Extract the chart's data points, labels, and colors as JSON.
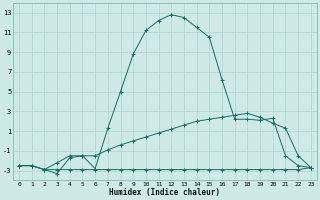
{
  "xlabel": "Humidex (Indice chaleur)",
  "background_color": "#ceeae7",
  "grid_color": "#aed4d0",
  "line_color": "#1a6b60",
  "xlim": [
    -0.5,
    23.5
  ],
  "ylim": [
    -4,
    14
  ],
  "yticks": [
    -3,
    -1,
    1,
    3,
    5,
    7,
    9,
    11,
    13
  ],
  "xticks": [
    0,
    1,
    2,
    3,
    4,
    5,
    6,
    7,
    8,
    9,
    10,
    11,
    12,
    13,
    14,
    15,
    16,
    17,
    18,
    19,
    20,
    21,
    22,
    23
  ],
  "series_flat_x": [
    0,
    1,
    2,
    3,
    4,
    5,
    6,
    7,
    8,
    9,
    10,
    11,
    12,
    13,
    14,
    15,
    16,
    17,
    18,
    19,
    20,
    21,
    22,
    23
  ],
  "series_flat_y": [
    -2.5,
    -2.5,
    -2.9,
    -2.9,
    -2.9,
    -2.9,
    -2.9,
    -2.9,
    -2.9,
    -2.9,
    -2.9,
    -2.9,
    -2.9,
    -2.9,
    -2.9,
    -2.9,
    -2.9,
    -2.9,
    -2.9,
    -2.9,
    -2.9,
    -2.9,
    -2.9,
    -2.7
  ],
  "series_slope_x": [
    0,
    1,
    2,
    3,
    4,
    5,
    6,
    7,
    8,
    9,
    10,
    11,
    12,
    13,
    14,
    15,
    16,
    17,
    18,
    19,
    20,
    21,
    22,
    23
  ],
  "series_slope_y": [
    -2.5,
    -2.5,
    -2.9,
    -2.2,
    -1.5,
    -1.5,
    -1.5,
    -0.9,
    -0.4,
    0.0,
    0.4,
    0.8,
    1.2,
    1.6,
    2.0,
    2.2,
    2.4,
    2.6,
    2.8,
    2.4,
    1.8,
    1.3,
    -1.5,
    -2.7
  ],
  "series_peak_x": [
    0,
    1,
    2,
    3,
    4,
    5,
    6,
    7,
    8,
    9,
    10,
    11,
    12,
    13,
    14,
    15,
    16,
    17,
    18,
    19,
    20,
    21,
    22,
    23
  ],
  "series_peak_y": [
    -2.5,
    -2.5,
    -2.9,
    -3.3,
    -1.7,
    -1.5,
    -2.8,
    1.3,
    5.0,
    8.8,
    11.2,
    12.2,
    12.8,
    12.5,
    11.5,
    10.5,
    6.2,
    2.2,
    2.2,
    2.1,
    2.3,
    -1.5,
    -2.5,
    -2.7
  ]
}
